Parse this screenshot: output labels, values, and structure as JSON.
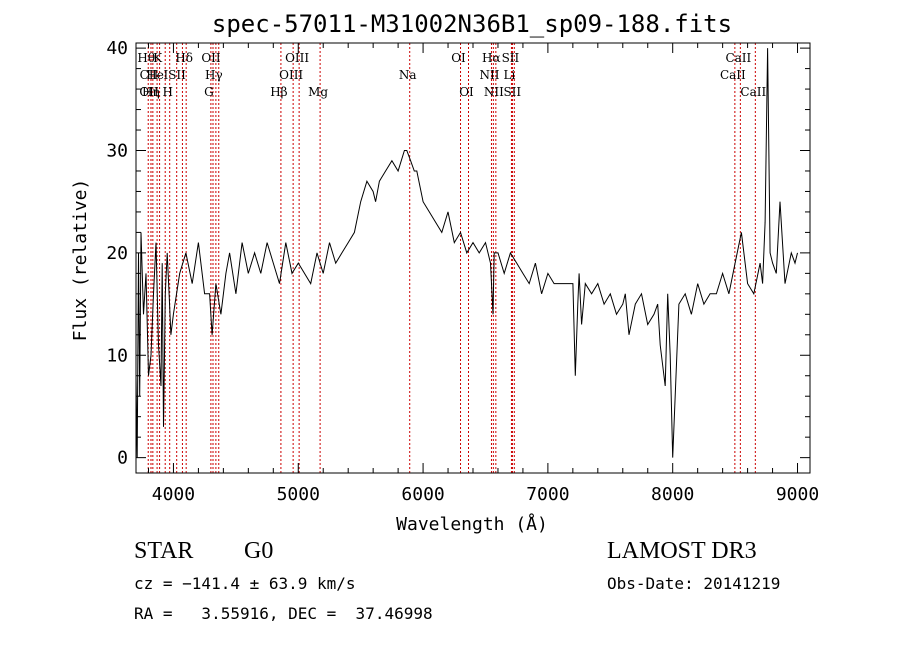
{
  "chart_data": {
    "type": "line",
    "title": "spec-57011-M31002N36B1_sp09-188.fits",
    "xlabel": "Wavelength (Å)",
    "ylabel": "Flux (relative)",
    "xlim": [
      3700,
      9100
    ],
    "ylim": [
      -1.5,
      40.5
    ],
    "xticks": [
      4000,
      5000,
      6000,
      7000,
      8000,
      9000
    ],
    "yticks": [
      0,
      10,
      20,
      30,
      40
    ],
    "grid": false,
    "line_color": "#000000",
    "marker_line_color": "#cc0000",
    "series": [
      {
        "x": [
          3700,
          3710,
          3720,
          3730,
          3740,
          3760,
          3780,
          3800,
          3820,
          3840,
          3860,
          3880,
          3900,
          3910,
          3920,
          3935,
          3950,
          3965,
          3980,
          4000,
          4050,
          4100,
          4150,
          4200,
          4250,
          4290,
          4310,
          4340,
          4380,
          4420,
          4450,
          4500,
          4550,
          4600,
          4650,
          4700,
          4750,
          4800,
          4850,
          4900,
          4950,
          5000,
          5050,
          5100,
          5150,
          5200,
          5250,
          5300,
          5350,
          5400,
          5450,
          5500,
          5550,
          5600,
          5620,
          5650,
          5700,
          5750,
          5800,
          5850,
          5870,
          5900,
          5930,
          5950,
          6000,
          6050,
          6100,
          6150,
          6200,
          6250,
          6300,
          6350,
          6400,
          6450,
          6500,
          6540,
          6560,
          6570,
          6600,
          6650,
          6700,
          6750,
          6800,
          6850,
          6900,
          6950,
          7000,
          7050,
          7100,
          7150,
          7200,
          7220,
          7240,
          7250,
          7270,
          7300,
          7350,
          7400,
          7450,
          7500,
          7550,
          7600,
          7620,
          7650,
          7700,
          7750,
          7800,
          7850,
          7880,
          7900,
          7920,
          7940,
          7960,
          7980,
          8000,
          8050,
          8100,
          8150,
          8200,
          8250,
          8300,
          8350,
          8400,
          8450,
          8500,
          8550,
          8600,
          8650,
          8700,
          8720,
          8740,
          8760,
          8780,
          8800,
          8830,
          8860,
          8900,
          8950,
          8980,
          9000
        ],
        "y": [
          8,
          0,
          20,
          6,
          22,
          14,
          18,
          8,
          10,
          16,
          21,
          11,
          7,
          19,
          3,
          16,
          20,
          16,
          12,
          14,
          18,
          20,
          17,
          21,
          16,
          16,
          12,
          17,
          14,
          18,
          20,
          16,
          21,
          18,
          20,
          18,
          21,
          19,
          17,
          21,
          18,
          19,
          18,
          17,
          20,
          18,
          21,
          19,
          20,
          21,
          22,
          25,
          27,
          26,
          25,
          27,
          28,
          29,
          28,
          30,
          30,
          29,
          28,
          28,
          25,
          24,
          23,
          22,
          24,
          21,
          22,
          20,
          21,
          20,
          21,
          19,
          14,
          20,
          20,
          18,
          20,
          19,
          18,
          17,
          19,
          16,
          18,
          17,
          17,
          17,
          17,
          8,
          15,
          18,
          13,
          17,
          16,
          17,
          15,
          16,
          14,
          15,
          16,
          12,
          15,
          16,
          13,
          14,
          15,
          11,
          9,
          7,
          16,
          10,
          0,
          15,
          16,
          14,
          17,
          15,
          16,
          16,
          18,
          16,
          19,
          22,
          17,
          16,
          19,
          17,
          23,
          40,
          20,
          19,
          18,
          25,
          17,
          20,
          19,
          20
        ]
      }
    ],
    "line_markers": [
      {
        "wl": 3798,
        "label": "Hθ",
        "row": 1
      },
      {
        "wl": 3820,
        "label": "CII",
        "row": 2
      },
      {
        "wl": 3820,
        "label": "OII",
        "row": 3
      },
      {
        "wl": 3835,
        "label": "Hη",
        "row": 3
      },
      {
        "wl": 3869,
        "label": "He",
        "row": 2
      },
      {
        "wl": 3889,
        "label": "K",
        "row": 1
      },
      {
        "wl": 3934,
        "label": "",
        "row": 1
      },
      {
        "wl": 3970,
        "label": "H",
        "row": 3
      },
      {
        "wl": 4026,
        "label": "ISII",
        "row": 2
      },
      {
        "wl": 4072,
        "label": "",
        "row": 2
      },
      {
        "wl": 4102,
        "label": "Hδ",
        "row": 1
      },
      {
        "wl": 4300,
        "label": "G",
        "row": 3
      },
      {
        "wl": 4317,
        "label": "OII",
        "row": 1
      },
      {
        "wl": 4340,
        "label": "Hγ",
        "row": 2
      },
      {
        "wl": 4363,
        "label": "",
        "row": 1
      },
      {
        "wl": 4861,
        "label": "Hβ",
        "row": 3
      },
      {
        "wl": 4959,
        "label": "OIII",
        "row": 2
      },
      {
        "wl": 5007,
        "label": "OIII",
        "row": 1
      },
      {
        "wl": 5175,
        "label": "Mg",
        "row": 3
      },
      {
        "wl": 5893,
        "label": "Na",
        "row": 2
      },
      {
        "wl": 6300,
        "label": "OI",
        "row": 1
      },
      {
        "wl": 6364,
        "label": "OI",
        "row": 3
      },
      {
        "wl": 6548,
        "label": "NII",
        "row": 2
      },
      {
        "wl": 6563,
        "label": "Hα",
        "row": 1
      },
      {
        "wl": 6583,
        "label": "NII",
        "row": 3
      },
      {
        "wl": 6708,
        "label": "Li",
        "row": 2
      },
      {
        "wl": 6716,
        "label": "SII",
        "row": 1
      },
      {
        "wl": 6731,
        "label": "SII",
        "row": 3
      },
      {
        "wl": 8498,
        "label": "CaII",
        "row": 2
      },
      {
        "wl": 8542,
        "label": "CaII",
        "row": 1
      },
      {
        "wl": 8662,
        "label": "CaII",
        "row": 3
      }
    ]
  },
  "info": {
    "class": "STAR",
    "subclass": "G0",
    "survey": "LAMOST DR3",
    "cz": "cz = −141.4 ± 63.9 km/s",
    "coords": "RA =   3.55916, DEC =  37.46998",
    "obs_date": "Obs-Date: 20141219"
  }
}
